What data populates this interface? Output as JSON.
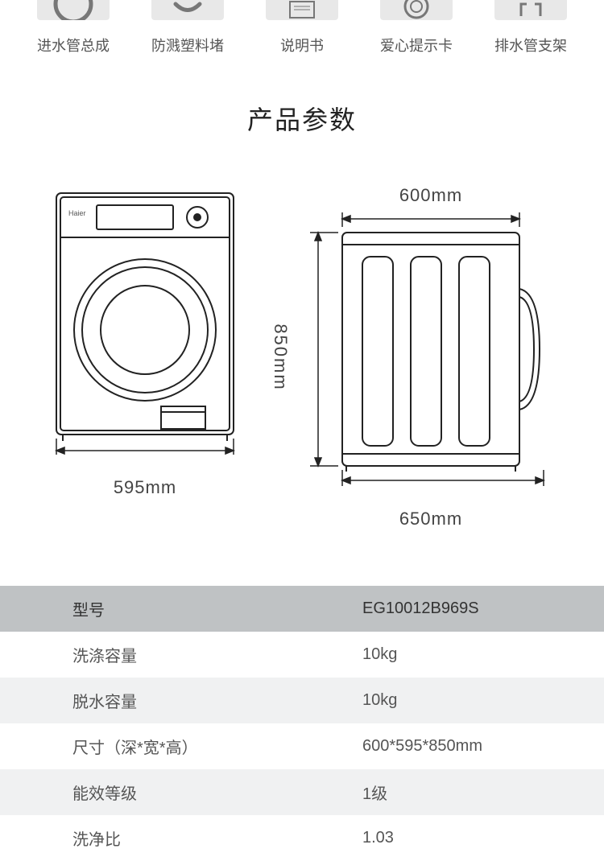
{
  "accessories": {
    "items": [
      {
        "label": "进水管总成"
      },
      {
        "label": "防溅塑料堵"
      },
      {
        "label": "说明书"
      },
      {
        "label": "爱心提示卡"
      },
      {
        "label": "排水管支架"
      }
    ]
  },
  "section_title": "产品参数",
  "diagram": {
    "front_width": "595mm",
    "side_depth_top": "600mm",
    "side_depth_bottom": "650mm",
    "height": "850mm",
    "brand": "Haier",
    "colors": {
      "stroke": "#222222",
      "thin_stroke": "#444444",
      "background": "#ffffff"
    }
  },
  "specs": {
    "rows": [
      {
        "label": "型号",
        "value": "EG10012B969S",
        "style": "header"
      },
      {
        "label": "洗涤容量",
        "value": "10kg",
        "style": "plain"
      },
      {
        "label": "脱水容量",
        "value": "10kg",
        "style": "stripe"
      },
      {
        "label": "尺寸（深*宽*高）",
        "value": "600*595*850mm",
        "style": "plain"
      },
      {
        "label": "能效等级",
        "value": "1级",
        "style": "stripe"
      },
      {
        "label": "洗净比",
        "value": "1.03",
        "style": "plain"
      }
    ]
  }
}
